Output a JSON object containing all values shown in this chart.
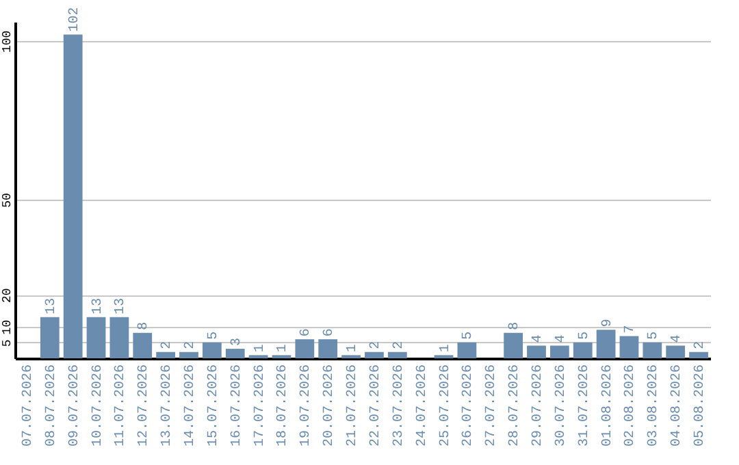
{
  "chart_data": {
    "type": "bar",
    "categories": [
      "07.07.2026",
      "08.07.2026",
      "09.07.2026",
      "10.07.2026",
      "11.07.2026",
      "12.07.2026",
      "13.07.2026",
      "14.07.2026",
      "15.07.2026",
      "16.07.2026",
      "17.07.2026",
      "18.07.2026",
      "19.07.2026",
      "20.07.2026",
      "21.07.2026",
      "22.07.2026",
      "23.07.2026",
      "24.07.2026",
      "25.07.2026",
      "26.07.2026",
      "27.07.2026",
      "28.07.2026",
      "29.07.2026",
      "30.07.2026",
      "31.07.2026",
      "01.08.2026",
      "02.08.2026",
      "03.08.2026",
      "04.08.2026",
      "05.08.2026"
    ],
    "values": [
      null,
      13,
      102,
      13,
      13,
      8,
      2,
      2,
      5,
      3,
      1,
      1,
      6,
      6,
      1,
      2,
      2,
      null,
      1,
      5,
      null,
      8,
      4,
      4,
      5,
      9,
      7,
      5,
      4,
      2
    ],
    "color": "#6a8caf",
    "ylim": [
      0,
      106
    ],
    "yticks": [
      5,
      10,
      20,
      50,
      100
    ],
    "grid": "y",
    "data_labels": true
  }
}
